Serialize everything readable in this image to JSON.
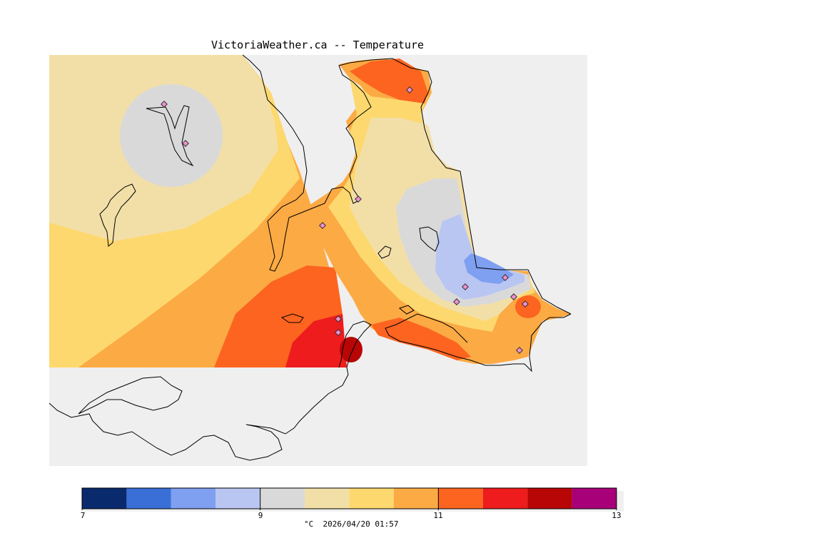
{
  "title": "VictoriaWeather.ca -- Temperature",
  "legend": {
    "unit": "°C",
    "timestamp": "2026/04/20 01:57",
    "tick_labels": [
      "7",
      "9",
      "11",
      "13"
    ],
    "min": 7,
    "max": 13,
    "bins": [
      {
        "from": 7.0,
        "to": 7.5,
        "color": "#0a2a6e"
      },
      {
        "from": 7.5,
        "to": 8.0,
        "color": "#3a6fd8"
      },
      {
        "from": 8.0,
        "to": 8.5,
        "color": "#7f9ff0"
      },
      {
        "from": 8.5,
        "to": 9.0,
        "color": "#b9c6f2"
      },
      {
        "from": 9.0,
        "to": 9.5,
        "color": "#d9d9d9"
      },
      {
        "from": 9.5,
        "to": 10.0,
        "color": "#f2dfa8"
      },
      {
        "from": 10.0,
        "to": 10.5,
        "color": "#fdd86e"
      },
      {
        "from": 10.5,
        "to": 11.0,
        "color": "#fcaa44"
      },
      {
        "from": 11.0,
        "to": 11.5,
        "color": "#fc6420"
      },
      {
        "from": 11.5,
        "to": 12.0,
        "color": "#ee1c1c"
      },
      {
        "from": 12.0,
        "to": 12.5,
        "color": "#b80606"
      },
      {
        "from": 12.5,
        "to": 13.0,
        "color": "#a80078"
      }
    ]
  },
  "colors": {
    "water": "#efefef",
    "land_outline": "#000000",
    "station_fill": "#f090d0"
  }
}
